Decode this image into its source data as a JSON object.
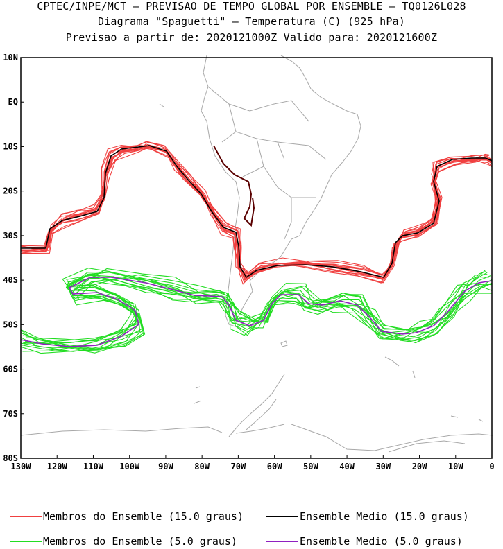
{
  "header": {
    "line1": "CPTEC/INPE/MCT – PREVISAO DE TEMPO GLOBAL POR ENSEMBLE – TQ0126L028",
    "line2": "Diagrama \"Spaguetti\" – Temperatura (C) (925 hPa)",
    "line3": "Previsao a partir de: 2020121000Z  Valido para: 2020121600Z"
  },
  "axes": {
    "lat_labels": [
      "10N",
      "EQ",
      "10S",
      "20S",
      "30S",
      "40S",
      "50S",
      "60S",
      "70S",
      "80S"
    ],
    "lon_labels": [
      "130W",
      "120W",
      "110W",
      "100W",
      "90W",
      "80W",
      "70W",
      "60W",
      "50W",
      "40W",
      "30W",
      "20W",
      "10W",
      "0"
    ]
  },
  "legend": [
    {
      "label": "Membros do Ensemble (15.0 graus)",
      "color": "#f04040"
    },
    {
      "label": "Ensemble Medio (15.0 graus)",
      "color": "#000000"
    },
    {
      "label": "Membros do Ensemble (5.0 graus)",
      "color": "#22dd22"
    },
    {
      "label": "Ensemble Medio (5.0 graus)",
      "color": "#9020c0"
    }
  ],
  "colors": {
    "coast": "#a8a8a8",
    "member15": "#f04040",
    "mean15": "#000000",
    "member5": "#22dd22",
    "mean5": "#9020c0"
  }
}
